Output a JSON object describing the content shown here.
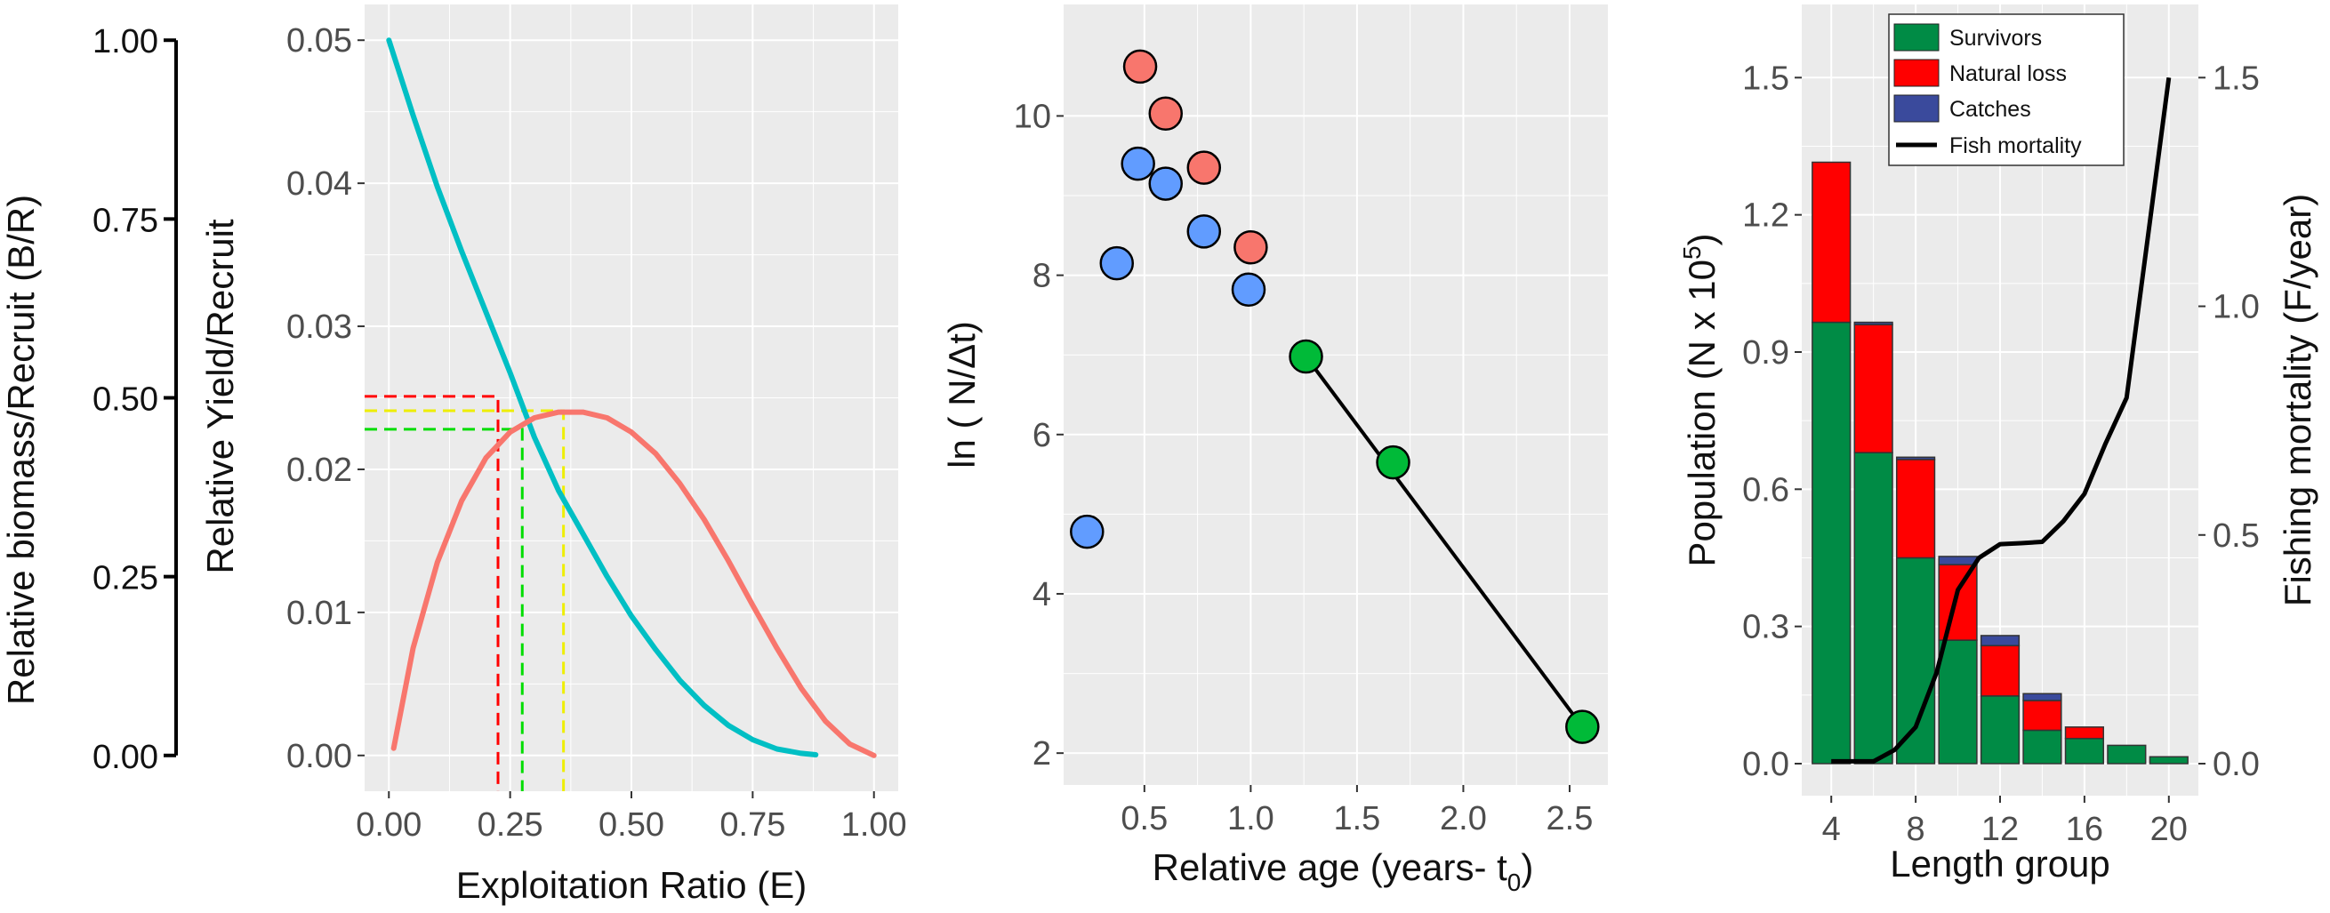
{
  "chart_data": [
    {
      "type": "line",
      "panel": "yield-biomass-per-recruit",
      "left_axis": {
        "label": "Relative biomass/Recruit (B/R)",
        "ticks": [
          "0.00",
          "0.25",
          "0.50",
          "0.75",
          "1.00"
        ],
        "highlight_tick": "0.50",
        "highlight_color": "#ff0000",
        "range": [
          0,
          1
        ]
      },
      "xlabel": "Exploitation Ratio (E)",
      "ylabel": "Relative Yield/Recruit",
      "xticks": [
        "0.00",
        "0.25",
        "0.50",
        "0.75",
        "1.00"
      ],
      "yticks": [
        "0.00",
        "0.01",
        "0.02",
        "0.03",
        "0.04",
        "0.05"
      ],
      "xlim": [
        -0.05,
        1.05
      ],
      "ylim": [
        -0.0025,
        0.0525
      ],
      "grid": true,
      "series": [
        {
          "color": "#00bfc4",
          "axis": "biomass",
          "x": [
            0,
            0.05,
            0.1,
            0.15,
            0.2,
            0.25,
            0.3,
            0.35,
            0.4,
            0.45,
            0.5,
            0.55,
            0.6,
            0.65,
            0.7,
            0.75,
            0.8,
            0.85,
            0.88
          ],
          "y": [
            1.0,
            0.895,
            0.795,
            0.705,
            0.62,
            0.535,
            0.445,
            0.37,
            0.31,
            0.25,
            0.195,
            0.148,
            0.105,
            0.07,
            0.042,
            0.022,
            0.009,
            0.003,
            0.001
          ]
        },
        {
          "color": "#f8766d",
          "axis": "yield",
          "x": [
            0.01,
            0.05,
            0.1,
            0.15,
            0.2,
            0.25,
            0.3,
            0.35,
            0.4,
            0.45,
            0.5,
            0.55,
            0.6,
            0.65,
            0.7,
            0.75,
            0.8,
            0.85,
            0.9,
            0.95,
            1.0
          ],
          "y": [
            0.0005,
            0.0075,
            0.0135,
            0.0178,
            0.0208,
            0.0226,
            0.0236,
            0.024,
            0.024,
            0.0236,
            0.0226,
            0.0211,
            0.019,
            0.0165,
            0.0136,
            0.0105,
            0.0075,
            0.0047,
            0.0024,
            0.0008,
            0.0
          ]
        }
      ],
      "reference_lines": [
        {
          "color": "#ff0000",
          "x": 0.225,
          "y": 0.0251
        },
        {
          "color": "#00dd00",
          "x": 0.275,
          "y": 0.0228
        },
        {
          "color": "#eeee00",
          "x": 0.36,
          "y": 0.0241
        }
      ]
    },
    {
      "type": "scatter",
      "panel": "catch-curve",
      "xlabel": "Relative age (years- t",
      "xlabel_subscript": "0",
      "xlabel_close": ")",
      "ylabel": "ln ( N/Δt)",
      "xticks": [
        "0.5",
        "1.0",
        "1.5",
        "2.0",
        "2.5"
      ],
      "yticks": [
        "2",
        "4",
        "6",
        "8",
        "10"
      ],
      "xlim": [
        0.12,
        2.68
      ],
      "ylim": [
        1.6,
        11.4
      ],
      "grid": true,
      "series": [
        {
          "color": "#f8766d",
          "x": [
            0.48,
            0.6,
            0.78,
            1.0
          ],
          "y": [
            10.62,
            10.03,
            9.35,
            8.35
          ]
        },
        {
          "color": "#619cff",
          "x": [
            0.23,
            0.37,
            0.47,
            0.6,
            0.78,
            0.99
          ],
          "y": [
            4.78,
            8.15,
            9.4,
            9.15,
            8.55,
            7.82
          ]
        },
        {
          "color": "#00ba38",
          "x": [
            1.26,
            1.67,
            2.56
          ],
          "y": [
            6.98,
            5.65,
            2.33
          ]
        }
      ],
      "regression_line": {
        "color": "#000000",
        "x": [
          1.26,
          2.56
        ],
        "y": [
          6.98,
          2.33
        ]
      }
    },
    {
      "type": "bar",
      "panel": "length-based-cohort",
      "xlabel": "Length group",
      "ylabel": "Population (N x 10",
      "ylabel_superscript": "5",
      "ylabel_close": ")",
      "ylabel_right": "Fishing mortality (F/year)",
      "xticks": [
        "4",
        "8",
        "12",
        "16",
        "20"
      ],
      "yticks": [
        "0.0",
        "0.3",
        "0.6",
        "0.9",
        "1.2",
        "1.5"
      ],
      "yticks_right": [
        "0.0",
        "0.5",
        "1.0",
        "1.5"
      ],
      "xlim": [
        2.6,
        21.4
      ],
      "ylim": [
        -0.07,
        1.66
      ],
      "ylim_right": [
        -0.07,
        1.66
      ],
      "grid": true,
      "legend_position": "top-right",
      "categories": [
        4,
        6,
        8,
        10,
        12,
        14,
        16,
        18,
        20
      ],
      "series": [
        {
          "name": "Survivors",
          "color": "#008b45",
          "values": [
            0.965,
            0.68,
            0.45,
            0.27,
            0.148,
            0.073,
            0.055,
            0.04,
            0.015
          ]
        },
        {
          "name": "Natural loss",
          "color": "#ff0000",
          "values": [
            0.35,
            0.28,
            0.215,
            0.165,
            0.11,
            0.065,
            0.025,
            0.0,
            0.0
          ]
        },
        {
          "name": "Catches",
          "color": "#3a4a9c",
          "values": [
            0.0,
            0.005,
            0.005,
            0.018,
            0.022,
            0.015,
            0.0,
            0.0,
            0.0
          ]
        }
      ],
      "line_series": {
        "name": "Fish mortality",
        "color": "#000000",
        "x": [
          4,
          5,
          6,
          7,
          8,
          9,
          10,
          11,
          12,
          13,
          14,
          15,
          16,
          17,
          18,
          19,
          20
        ],
        "y": [
          0.005,
          0.005,
          0.005,
          0.03,
          0.08,
          0.2,
          0.38,
          0.45,
          0.48,
          0.482,
          0.485,
          0.53,
          0.59,
          0.7,
          0.8,
          1.15,
          1.5
        ]
      }
    }
  ]
}
